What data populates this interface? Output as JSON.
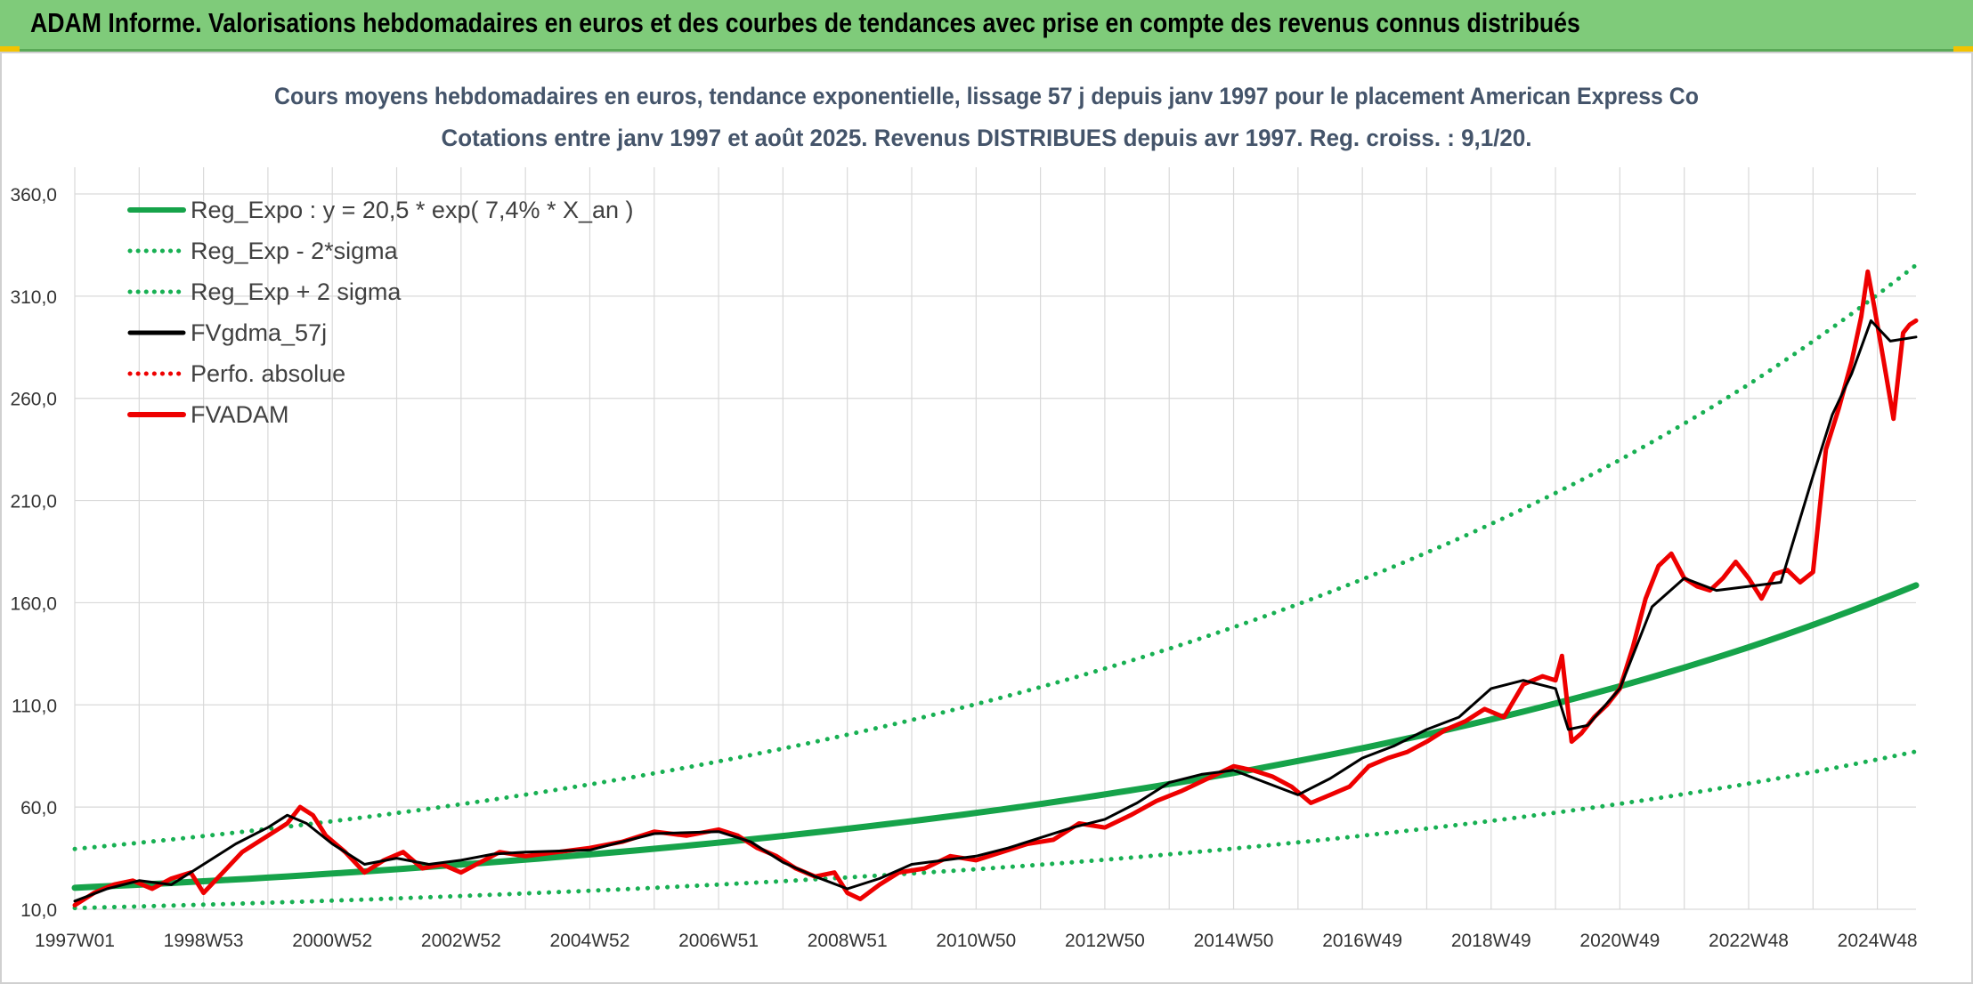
{
  "header": {
    "title": "ADAM Informe. Valorisations hebdomadaires en euros et des courbes de tendances avec prise en compte des revenus connus distribués"
  },
  "colors": {
    "header_bg": "#7fcb7a",
    "reg_green": "#16a34a",
    "dotted_green": "#18b053",
    "black_line": "#000000",
    "red_line": "#ee0000",
    "grid": "#d9d9d9"
  },
  "chart_data": {
    "type": "line",
    "title": "Cours moyens hebdomadaires en euros, tendance exponentielle, lissage 57 j depuis janv 1997 pour le placement American Express Co",
    "subtitle": "Cotations entre janv 1997 et août 2025. Revenus DISTRIBUES depuis avr 1997. Reg. croiss. : 9,1/20.",
    "xlabel": "",
    "ylabel": "",
    "ylim": [
      10,
      360
    ],
    "xlim": [
      1997.0,
      2025.6
    ],
    "grid": true,
    "legend_position": "top-left",
    "y_ticks": [
      "10,0",
      "60,0",
      "110,0",
      "160,0",
      "210,0",
      "260,0",
      "310,0",
      "360,0"
    ],
    "y_tick_values": [
      10,
      60,
      110,
      160,
      210,
      260,
      310,
      360
    ],
    "x_ticks": [
      "1997W01",
      "1998W53",
      "2000W52",
      "2002W52",
      "2004W52",
      "2006W51",
      "2008W51",
      "2010W50",
      "2012W50",
      "2014W50",
      "2016W49",
      "2018W49",
      "2020W49",
      "2022W48",
      "2024W48"
    ],
    "x_tick_values": [
      1997.0,
      1999.0,
      2001.0,
      2003.0,
      2005.0,
      2007.0,
      2009.0,
      2011.0,
      2013.0,
      2015.0,
      2017.0,
      2019.0,
      2021.0,
      2023.0,
      2025.0
    ],
    "x_grid_values": [
      1997.0,
      1998.0,
      1999.0,
      2000.0,
      2001.0,
      2002.0,
      2003.0,
      2004.0,
      2005.0,
      2006.0,
      2007.0,
      2008.0,
      2009.0,
      2010.0,
      2011.0,
      2012.0,
      2013.0,
      2014.0,
      2015.0,
      2016.0,
      2017.0,
      2018.0,
      2019.0,
      2020.0,
      2021.0,
      2022.0,
      2023.0,
      2024.0,
      2025.0
    ],
    "series": [
      {
        "name": "Reg_Expo : y = 20,5 * exp( 7,4% *  X_an )",
        "style": "solid-thick",
        "color": "#16a34a",
        "x": [
          1997.0,
          2000.0,
          2003.0,
          2006.0,
          2009.0,
          2012.0,
          2015.0,
          2018.0,
          2021.0,
          2023.0,
          2025.6
        ],
        "y": [
          20.5,
          25.5,
          31.9,
          39.6,
          49.4,
          61.5,
          76.7,
          95.6,
          119.1,
          138.2,
          168.5
        ]
      },
      {
        "name": "Reg_Exp - 2*sigma",
        "style": "dotted",
        "color": "#18b053",
        "x": [
          1997.0,
          2000.0,
          2003.0,
          2006.0,
          2009.0,
          2012.0,
          2015.0,
          2018.0,
          2021.0,
          2023.0,
          2025.6
        ],
        "y": [
          10.6,
          13.2,
          16.5,
          20.5,
          25.6,
          31.8,
          39.7,
          49.5,
          61.6,
          71.5,
          87.2
        ]
      },
      {
        "name": "Reg_Exp + 2 sigma",
        "style": "dotted",
        "color": "#18b053",
        "x": [
          1997.0,
          2000.0,
          2003.0,
          2006.0,
          2009.0,
          2012.0,
          2015.0,
          2018.0,
          2021.0,
          2023.0,
          2025.6
        ],
        "y": [
          39.5,
          49.3,
          61.4,
          76.5,
          95.4,
          118.7,
          148.0,
          184.5,
          229.9,
          266.8,
          325.2
        ]
      },
      {
        "name": "FVgdma_57j",
        "style": "solid",
        "color": "#000000",
        "x": [
          1997.0,
          1997.5,
          1998.0,
          1998.5,
          1999.0,
          1999.5,
          2000.0,
          2000.3,
          2000.6,
          2001.0,
          2001.5,
          2002.0,
          2002.5,
          2003.0,
          2003.5,
          2004.0,
          2005.0,
          2006.0,
          2007.0,
          2007.5,
          2008.0,
          2008.5,
          2009.0,
          2009.5,
          2010.0,
          2010.5,
          2011.0,
          2011.5,
          2012.0,
          2012.5,
          2013.0,
          2013.5,
          2014.0,
          2014.5,
          2015.0,
          2015.5,
          2016.0,
          2016.5,
          2017.0,
          2017.5,
          2018.0,
          2018.5,
          2019.0,
          2019.5,
          2020.0,
          2020.2,
          2020.5,
          2021.0,
          2021.5,
          2022.0,
          2022.5,
          2023.0,
          2023.5,
          2024.0,
          2024.3,
          2024.6,
          2024.9,
          2025.2,
          2025.6
        ],
        "y": [
          14.0,
          20.0,
          24.0,
          22.0,
          32.0,
          42.0,
          50.0,
          56.0,
          52.0,
          42.0,
          32.0,
          35.0,
          32.0,
          34.0,
          37.0,
          38.0,
          39.0,
          47.0,
          48.0,
          43.0,
          33.0,
          26.0,
          20.0,
          25.0,
          32.0,
          34.0,
          36.0,
          40.0,
          45.0,
          50.0,
          54.0,
          62.0,
          72.0,
          76.0,
          78.0,
          72.0,
          66.0,
          74.0,
          84.0,
          90.0,
          98.0,
          104.0,
          118.0,
          122.0,
          118.0,
          98.0,
          100.0,
          118.0,
          158.0,
          172.0,
          166.0,
          168.0,
          170.0,
          222.0,
          252.0,
          272.0,
          298.0,
          288.0,
          290.0
        ]
      },
      {
        "name": "Perfo. absolue",
        "style": "dotted",
        "color": "#ee0000",
        "x": [],
        "y": []
      },
      {
        "name": "FVADAM",
        "style": "solid-thick",
        "color": "#ee0000",
        "x": [
          1997.0,
          1997.3,
          1997.6,
          1997.9,
          1998.2,
          1998.5,
          1998.8,
          1999.0,
          1999.3,
          1999.6,
          1999.9,
          2000.1,
          2000.3,
          2000.5,
          2000.7,
          2000.9,
          2001.2,
          2001.5,
          2001.8,
          2002.1,
          2002.4,
          2002.7,
          2003.0,
          2003.3,
          2003.6,
          2004.0,
          2004.5,
          2005.0,
          2005.5,
          2006.0,
          2006.5,
          2007.0,
          2007.3,
          2007.6,
          2007.9,
          2008.2,
          2008.5,
          2008.8,
          2009.0,
          2009.2,
          2009.5,
          2009.8,
          2010.2,
          2010.6,
          2011.0,
          2011.4,
          2011.8,
          2012.2,
          2012.6,
          2013.0,
          2013.4,
          2013.8,
          2014.2,
          2014.6,
          2015.0,
          2015.3,
          2015.6,
          2015.9,
          2016.2,
          2016.5,
          2016.8,
          2017.1,
          2017.4,
          2017.7,
          2018.0,
          2018.3,
          2018.6,
          2018.9,
          2019.2,
          2019.5,
          2019.8,
          2020.0,
          2020.1,
          2020.25,
          2020.4,
          2020.6,
          2020.8,
          2021.0,
          2021.2,
          2021.4,
          2021.6,
          2021.8,
          2022.0,
          2022.2,
          2022.4,
          2022.6,
          2022.8,
          2023.0,
          2023.2,
          2023.4,
          2023.6,
          2023.8,
          2024.0,
          2024.2,
          2024.4,
          2024.6,
          2024.75,
          2024.85,
          2024.95,
          2025.1,
          2025.25,
          2025.4,
          2025.5,
          2025.6
        ],
        "y": [
          12.0,
          18.0,
          22.0,
          24.0,
          20.0,
          25.0,
          28.0,
          18.0,
          28.0,
          38.0,
          44.0,
          48.0,
          52.0,
          60.0,
          56.0,
          46.0,
          38.0,
          28.0,
          34.0,
          38.0,
          30.0,
          32.0,
          28.0,
          33.0,
          38.0,
          36.0,
          38.0,
          40.0,
          43.0,
          48.0,
          46.0,
          49.0,
          46.0,
          40.0,
          36.0,
          30.0,
          26.0,
          28.0,
          18.0,
          15.0,
          22.0,
          28.0,
          30.0,
          36.0,
          34.0,
          38.0,
          42.0,
          44.0,
          52.0,
          50.0,
          56.0,
          63.0,
          68.0,
          74.0,
          80.0,
          78.0,
          75.0,
          70.0,
          62.0,
          66.0,
          70.0,
          80.0,
          84.0,
          87.0,
          92.0,
          98.0,
          102.0,
          108.0,
          104.0,
          120.0,
          124.0,
          122.0,
          134.0,
          92.0,
          96.0,
          104.0,
          110.0,
          118.0,
          138.0,
          162.0,
          178.0,
          184.0,
          172.0,
          168.0,
          166.0,
          172.0,
          180.0,
          172.0,
          162.0,
          174.0,
          176.0,
          170.0,
          175.0,
          235.0,
          255.0,
          278.0,
          300.0,
          322.0,
          305.0,
          278.0,
          250.0,
          292.0,
          296.0,
          298.0
        ]
      }
    ]
  }
}
